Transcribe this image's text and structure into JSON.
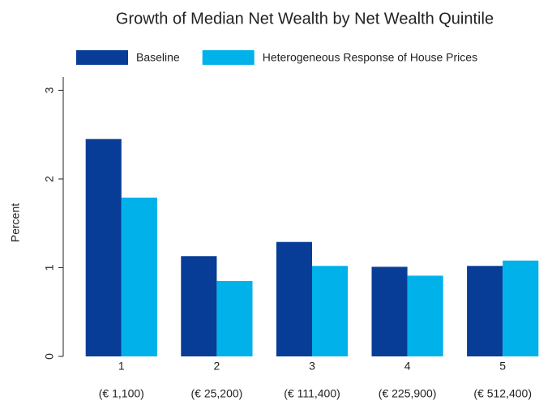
{
  "chart_data": {
    "type": "bar",
    "title": "Growth of Median Net Wealth by Net Wealth Quintile",
    "y_label": "Percent",
    "categories": [
      "1",
      "2",
      "3",
      "4",
      "5"
    ],
    "category_sublabels": [
      "(€ 1,100)",
      "(€ 25,200)",
      "(€ 111,400)",
      "(€ 225,900)",
      "(€ 512,400)"
    ],
    "series": [
      {
        "name": "Baseline",
        "color": "#073c97",
        "values": [
          2.45,
          1.13,
          1.29,
          1.01,
          1.02
        ]
      },
      {
        "name": "Heterogeneous Response of House Prices",
        "color": "#00b1ea",
        "values": [
          1.79,
          0.85,
          1.02,
          0.91,
          1.08
        ]
      }
    ],
    "ylim": [
      0,
      3.15
    ],
    "yticks": [
      0,
      1,
      2,
      3
    ],
    "grid": false,
    "legend": "top"
  }
}
